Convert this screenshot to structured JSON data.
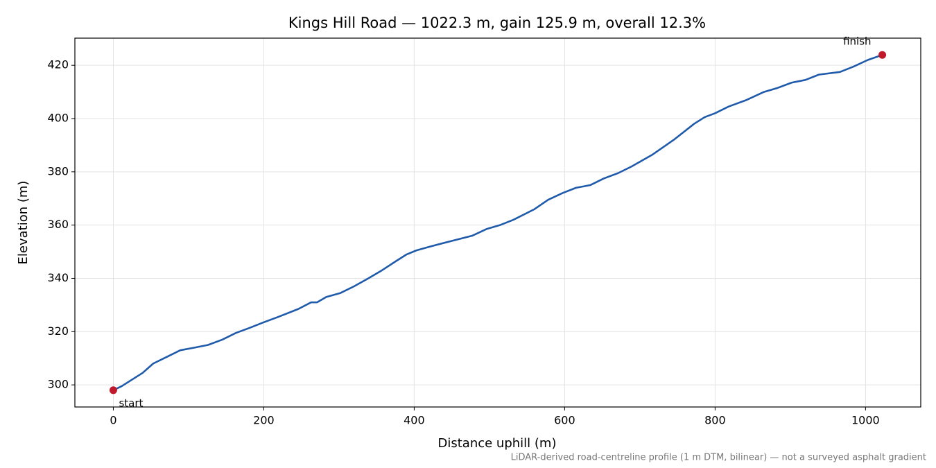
{
  "chart_data": {
    "type": "line",
    "title": "Kings Hill Road — 1022.3 m, gain 125.9 m, overall 12.3%",
    "xlabel": "Distance uphill (m)",
    "ylabel": "Elevation (m)",
    "footnote": "LiDAR-derived road-centreline profile (1 m DTM, bilinear) — not a surveyed asphalt gradient",
    "x": [
      0,
      11,
      25,
      39,
      53,
      71,
      89,
      108,
      126,
      145,
      163,
      182,
      200,
      219,
      246,
      263,
      271,
      283,
      302,
      320,
      339,
      357,
      376,
      390,
      403,
      422,
      449,
      477,
      496,
      514,
      532,
      560,
      578,
      597,
      615,
      634,
      652,
      671,
      689,
      717,
      745,
      772,
      786,
      800,
      818,
      842,
      865,
      883,
      902,
      920,
      938,
      966,
      984,
      1003,
      1022.3
    ],
    "series": [
      {
        "name": "Elevation",
        "color": "#1f5aab",
        "values": [
          298.0,
          299.5,
          302,
          304.5,
          308,
          310.5,
          313,
          314,
          315,
          317,
          319.5,
          321.5,
          323.5,
          325.5,
          328.5,
          331,
          331,
          333,
          334.5,
          337,
          340,
          343,
          346.5,
          349,
          350.5,
          352,
          354,
          356,
          358.5,
          360,
          362,
          366,
          369.5,
          372,
          374,
          375,
          377.5,
          379.5,
          382,
          386.5,
          392,
          398,
          400.5,
          402,
          404.5,
          407,
          410,
          411.5,
          413.5,
          414.5,
          416.5,
          417.5,
          419.5,
          422,
          423.9
        ]
      }
    ],
    "annotations": [
      {
        "text": "start",
        "x": 0,
        "y": 298.0,
        "color": "#c0192c"
      },
      {
        "text": "finish",
        "x": 1022.3,
        "y": 423.9,
        "color": "#c0192c"
      }
    ],
    "xlim": [
      -51.1,
      1073.4
    ],
    "ylim": [
      291.7,
      430.2
    ],
    "xticks": [
      0,
      200,
      400,
      600,
      800,
      1000
    ],
    "yticks": [
      300,
      320,
      340,
      360,
      380,
      400,
      420
    ],
    "grid": true
  }
}
